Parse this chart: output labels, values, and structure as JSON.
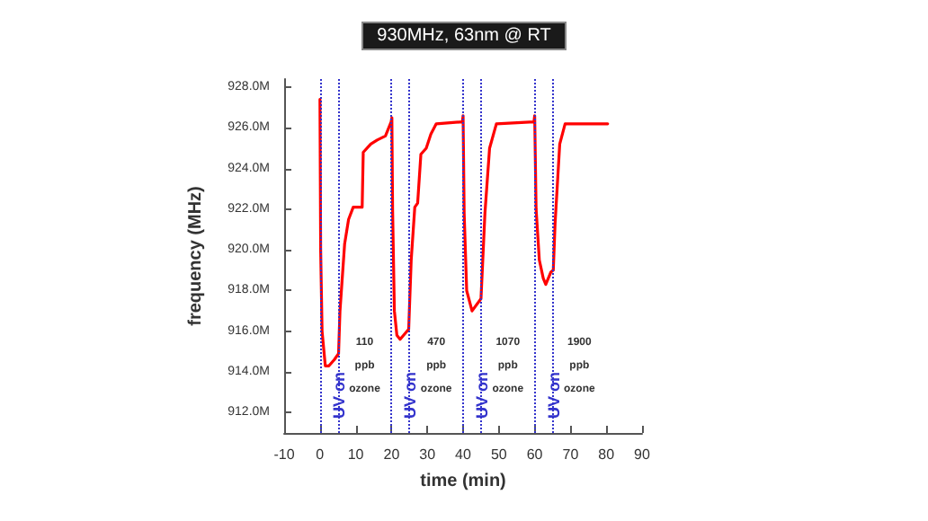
{
  "chart_data": {
    "type": "line",
    "title": "930MHz, 63nm @ RT",
    "xlabel": "time (min)",
    "ylabel": "frequency (MHz)",
    "x": [
      0,
      0.2,
      0.6,
      1.5,
      2.5,
      4,
      5.2,
      5.6,
      6.9,
      8,
      9.3,
      11.8,
      12.1,
      14.2,
      16,
      18.3,
      19.9,
      20.1,
      20.3,
      20.8,
      21.5,
      22.4,
      24.8,
      25.5,
      26.5,
      27.3,
      28.2,
      29.7,
      31,
      32.5,
      39.8,
      40,
      40.3,
      41,
      42.5,
      45,
      45.5,
      46.1,
      47.4,
      49.3,
      59.8,
      60,
      60.4,
      61.3,
      62.4,
      63.1,
      64.5,
      65.2,
      65.7,
      67,
      68.5,
      80.4
    ],
    "series": [
      {
        "color": "#ff0000",
        "values": [
          927.4,
          920,
          916,
          914.3,
          914.3,
          914.6,
          914.9,
          917,
          920.3,
          921.5,
          922.1,
          922.1,
          924.8,
          925.2,
          925.4,
          925.6,
          926.3,
          926.5,
          922,
          917,
          915.8,
          915.6,
          916.1,
          919.5,
          922.1,
          922.3,
          924.7,
          925,
          925.7,
          926.2,
          926.3,
          926.6,
          921.8,
          918,
          917,
          917.6,
          919.5,
          921.8,
          925,
          926.2,
          926.3,
          926.6,
          922,
          919.5,
          918.6,
          918.3,
          918.9,
          919,
          921.3,
          925.2,
          926.2,
          926.2
        ]
      }
    ],
    "xlim": [
      -10,
      90
    ],
    "xticks": [
      -10,
      0,
      10,
      20,
      30,
      40,
      50,
      60,
      70,
      80,
      90
    ],
    "ylim": [
      911,
      928.4
    ],
    "yticks": [
      {
        "value": 912,
        "label": "912.0M"
      },
      {
        "value": 914,
        "label": "914.0M"
      },
      {
        "value": 916,
        "label": "916.0M"
      },
      {
        "value": 918,
        "label": "918.0M"
      },
      {
        "value": 920,
        "label": "920.0M"
      },
      {
        "value": 922,
        "label": "922.0M"
      },
      {
        "value": 924,
        "label": "924.0M"
      },
      {
        "value": 926,
        "label": "926.0M"
      },
      {
        "value": 928,
        "label": "928.0M"
      }
    ],
    "ref_lines": [
      {
        "axis": "x",
        "value": 0,
        "label": "UV on",
        "color": "#3333cc",
        "line_style": "dotted"
      },
      {
        "axis": "x",
        "value": 5,
        "label": null,
        "color": "#3333cc",
        "line_style": "dotted"
      },
      {
        "axis": "x",
        "value": 20,
        "label": "UV on",
        "color": "#3333cc",
        "line_style": "dotted"
      },
      {
        "axis": "x",
        "value": 25,
        "label": null,
        "color": "#3333cc",
        "line_style": "dotted"
      },
      {
        "axis": "x",
        "value": 40,
        "label": "UV on",
        "color": "#3333cc",
        "line_style": "dotted"
      },
      {
        "axis": "x",
        "value": 45,
        "label": null,
        "color": "#3333cc",
        "line_style": "dotted"
      },
      {
        "axis": "x",
        "value": 60,
        "label": "UV on",
        "color": "#3333cc",
        "line_style": "dotted"
      },
      {
        "axis": "x",
        "value": 65,
        "label": null,
        "color": "#3333cc",
        "line_style": "dotted"
      }
    ],
    "annotations": [
      "110\nppb\nozone",
      "470\nppb\nozone",
      "1070\nppb\nozone",
      "1900\nppb\nozone"
    ],
    "grid": false,
    "marker": "none",
    "line_style": "solid"
  }
}
